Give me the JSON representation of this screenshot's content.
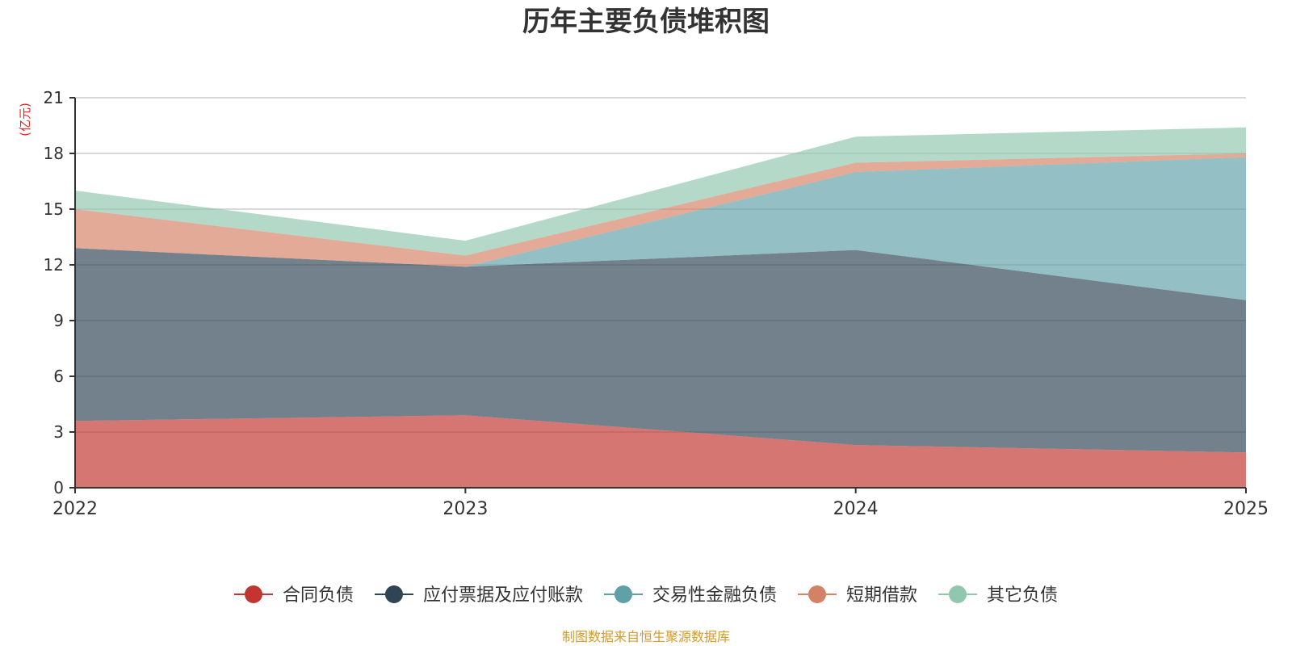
{
  "chart_data": {
    "type": "area",
    "stacked": true,
    "title": "历年主要负债堆积图",
    "ylabel": "(亿元)",
    "xlabel": "",
    "x": [
      "2022",
      "2023",
      "2024",
      "2025"
    ],
    "ylim": [
      0,
      21
    ],
    "yticks": [
      0,
      3,
      6,
      9,
      12,
      15,
      18,
      21
    ],
    "grid": true,
    "legend_position": "bottom",
    "series": [
      {
        "name": "合同负债",
        "color": "#c23531",
        "values": [
          3.6,
          3.9,
          2.3,
          1.9
        ]
      },
      {
        "name": "应付票据及应付账款",
        "color": "#2f4554",
        "values": [
          9.3,
          8.0,
          10.5,
          8.2
        ]
      },
      {
        "name": "交易性金融负债",
        "color": "#61a0a8",
        "values": [
          0.0,
          0.0,
          4.2,
          7.7
        ]
      },
      {
        "name": "短期借款",
        "color": "#d48265",
        "values": [
          2.1,
          0.6,
          0.5,
          0.2
        ]
      },
      {
        "name": "其它负债",
        "color": "#91c7ae",
        "values": [
          1.0,
          0.8,
          1.4,
          1.4
        ]
      }
    ],
    "source_note": "制图数据来自恒生聚源数据库"
  }
}
